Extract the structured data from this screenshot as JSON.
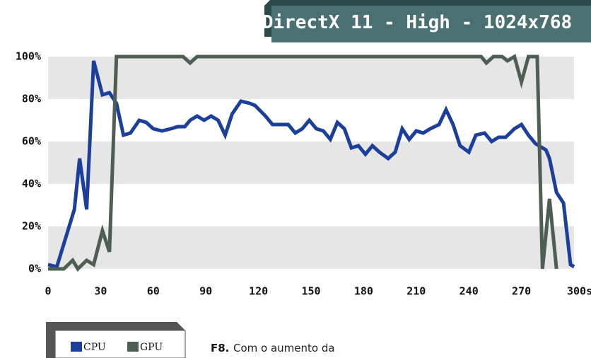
{
  "chart_data": {
    "type": "line",
    "title": "DirectX 11 - High - 1024x768",
    "caption_label": "F8.",
    "caption": "Com o aumento da",
    "xlim": [
      0,
      300
    ],
    "xticks": [
      0,
      30,
      60,
      90,
      120,
      150,
      180,
      210,
      240,
      270,
      {
        "value": 300,
        "label": "300s"
      }
    ],
    "ylim": [
      0,
      100
    ],
    "yticks": [
      {
        "value": 0,
        "label": "0%"
      },
      {
        "value": 20,
        "label": "20%"
      },
      {
        "value": 40,
        "label": "40%"
      },
      {
        "value": 60,
        "label": "60%"
      },
      {
        "value": 80,
        "label": "80%"
      },
      {
        "value": 100,
        "label": "100%"
      }
    ],
    "grid": "bands",
    "series": [
      {
        "name": "CPU",
        "color": "#1b3f9a",
        "x": [
          0,
          5,
          15,
          18,
          22,
          26,
          31,
          35,
          39,
          43,
          47,
          52,
          56,
          60,
          65,
          70,
          74,
          78,
          81,
          85,
          89,
          93,
          97,
          101,
          105,
          110,
          115,
          118,
          124,
          128,
          133,
          137,
          141,
          145,
          149,
          153,
          157,
          161,
          165,
          169,
          173,
          177,
          181,
          185,
          189,
          194,
          198,
          202,
          206,
          210,
          214,
          218,
          223,
          227,
          231,
          235,
          240,
          244,
          249,
          253,
          257,
          261,
          266,
          270,
          274,
          278,
          284,
          286,
          290,
          294,
          298,
          300
        ],
        "values": [
          2,
          1,
          28,
          52,
          28,
          98,
          82,
          83,
          78,
          63,
          64,
          70,
          69,
          66,
          65,
          66,
          67,
          67,
          70,
          72,
          70,
          72,
          70,
          63,
          73,
          79,
          78,
          77,
          72,
          68,
          68,
          68,
          64,
          66,
          70,
          66,
          65,
          61,
          69,
          66,
          57,
          58,
          54,
          58,
          55,
          52,
          55,
          66,
          61,
          65,
          64,
          66,
          68,
          75,
          68,
          58,
          55,
          63,
          64,
          60,
          62,
          62,
          66,
          68,
          63,
          59,
          56,
          52,
          36,
          31,
          2,
          1
        ]
      },
      {
        "name": "GPU",
        "color": "#4d5e52",
        "x": [
          0,
          9,
          14,
          17,
          22,
          26,
          31,
          35,
          39,
          77,
          81,
          85,
          247,
          250,
          254,
          259,
          262,
          266,
          270,
          274,
          279,
          282,
          286,
          290
        ],
        "values": [
          0,
          0,
          4,
          0,
          4,
          2,
          18,
          8,
          100,
          100,
          97,
          100,
          100,
          97,
          100,
          100,
          98,
          100,
          88,
          100,
          100,
          0,
          33,
          0
        ]
      }
    ]
  }
}
